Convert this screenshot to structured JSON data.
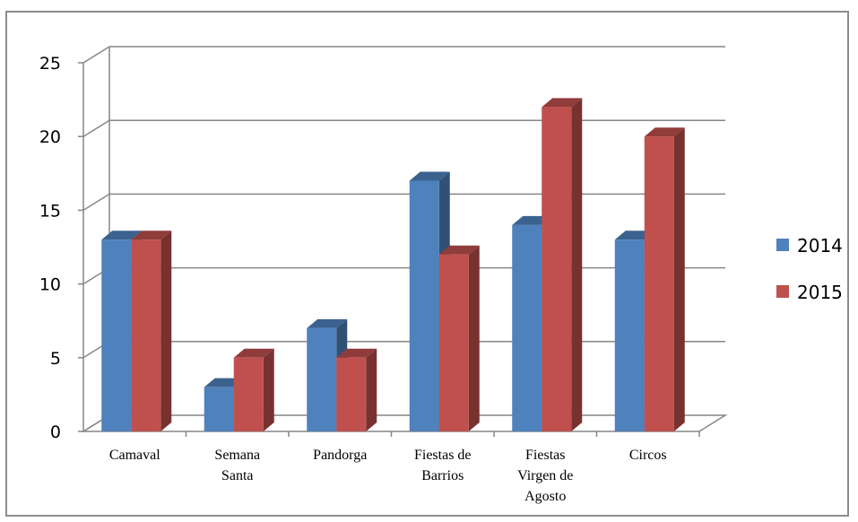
{
  "chart_data": {
    "type": "bar",
    "title": "",
    "xlabel": "",
    "ylabel": "",
    "ylim": [
      0,
      25
    ],
    "yticks": [
      0,
      5,
      10,
      15,
      20,
      25
    ],
    "grid": true,
    "legend_position": "right",
    "categories": [
      [
        "Camaval"
      ],
      [
        "Semana",
        "Santa"
      ],
      [
        "Pandorga"
      ],
      [
        "Fiestas de",
        "Barrios"
      ],
      [
        "Fiestas",
        "Virgen de",
        "Agosto"
      ],
      [
        "Circos"
      ]
    ],
    "series": [
      {
        "name": "2014",
        "color": "#4f81bd",
        "values": [
          13,
          3,
          7,
          17,
          14,
          13
        ]
      },
      {
        "name": "2015",
        "color": "#c0504d",
        "values": [
          13,
          5,
          5,
          12,
          22,
          20
        ]
      }
    ]
  }
}
